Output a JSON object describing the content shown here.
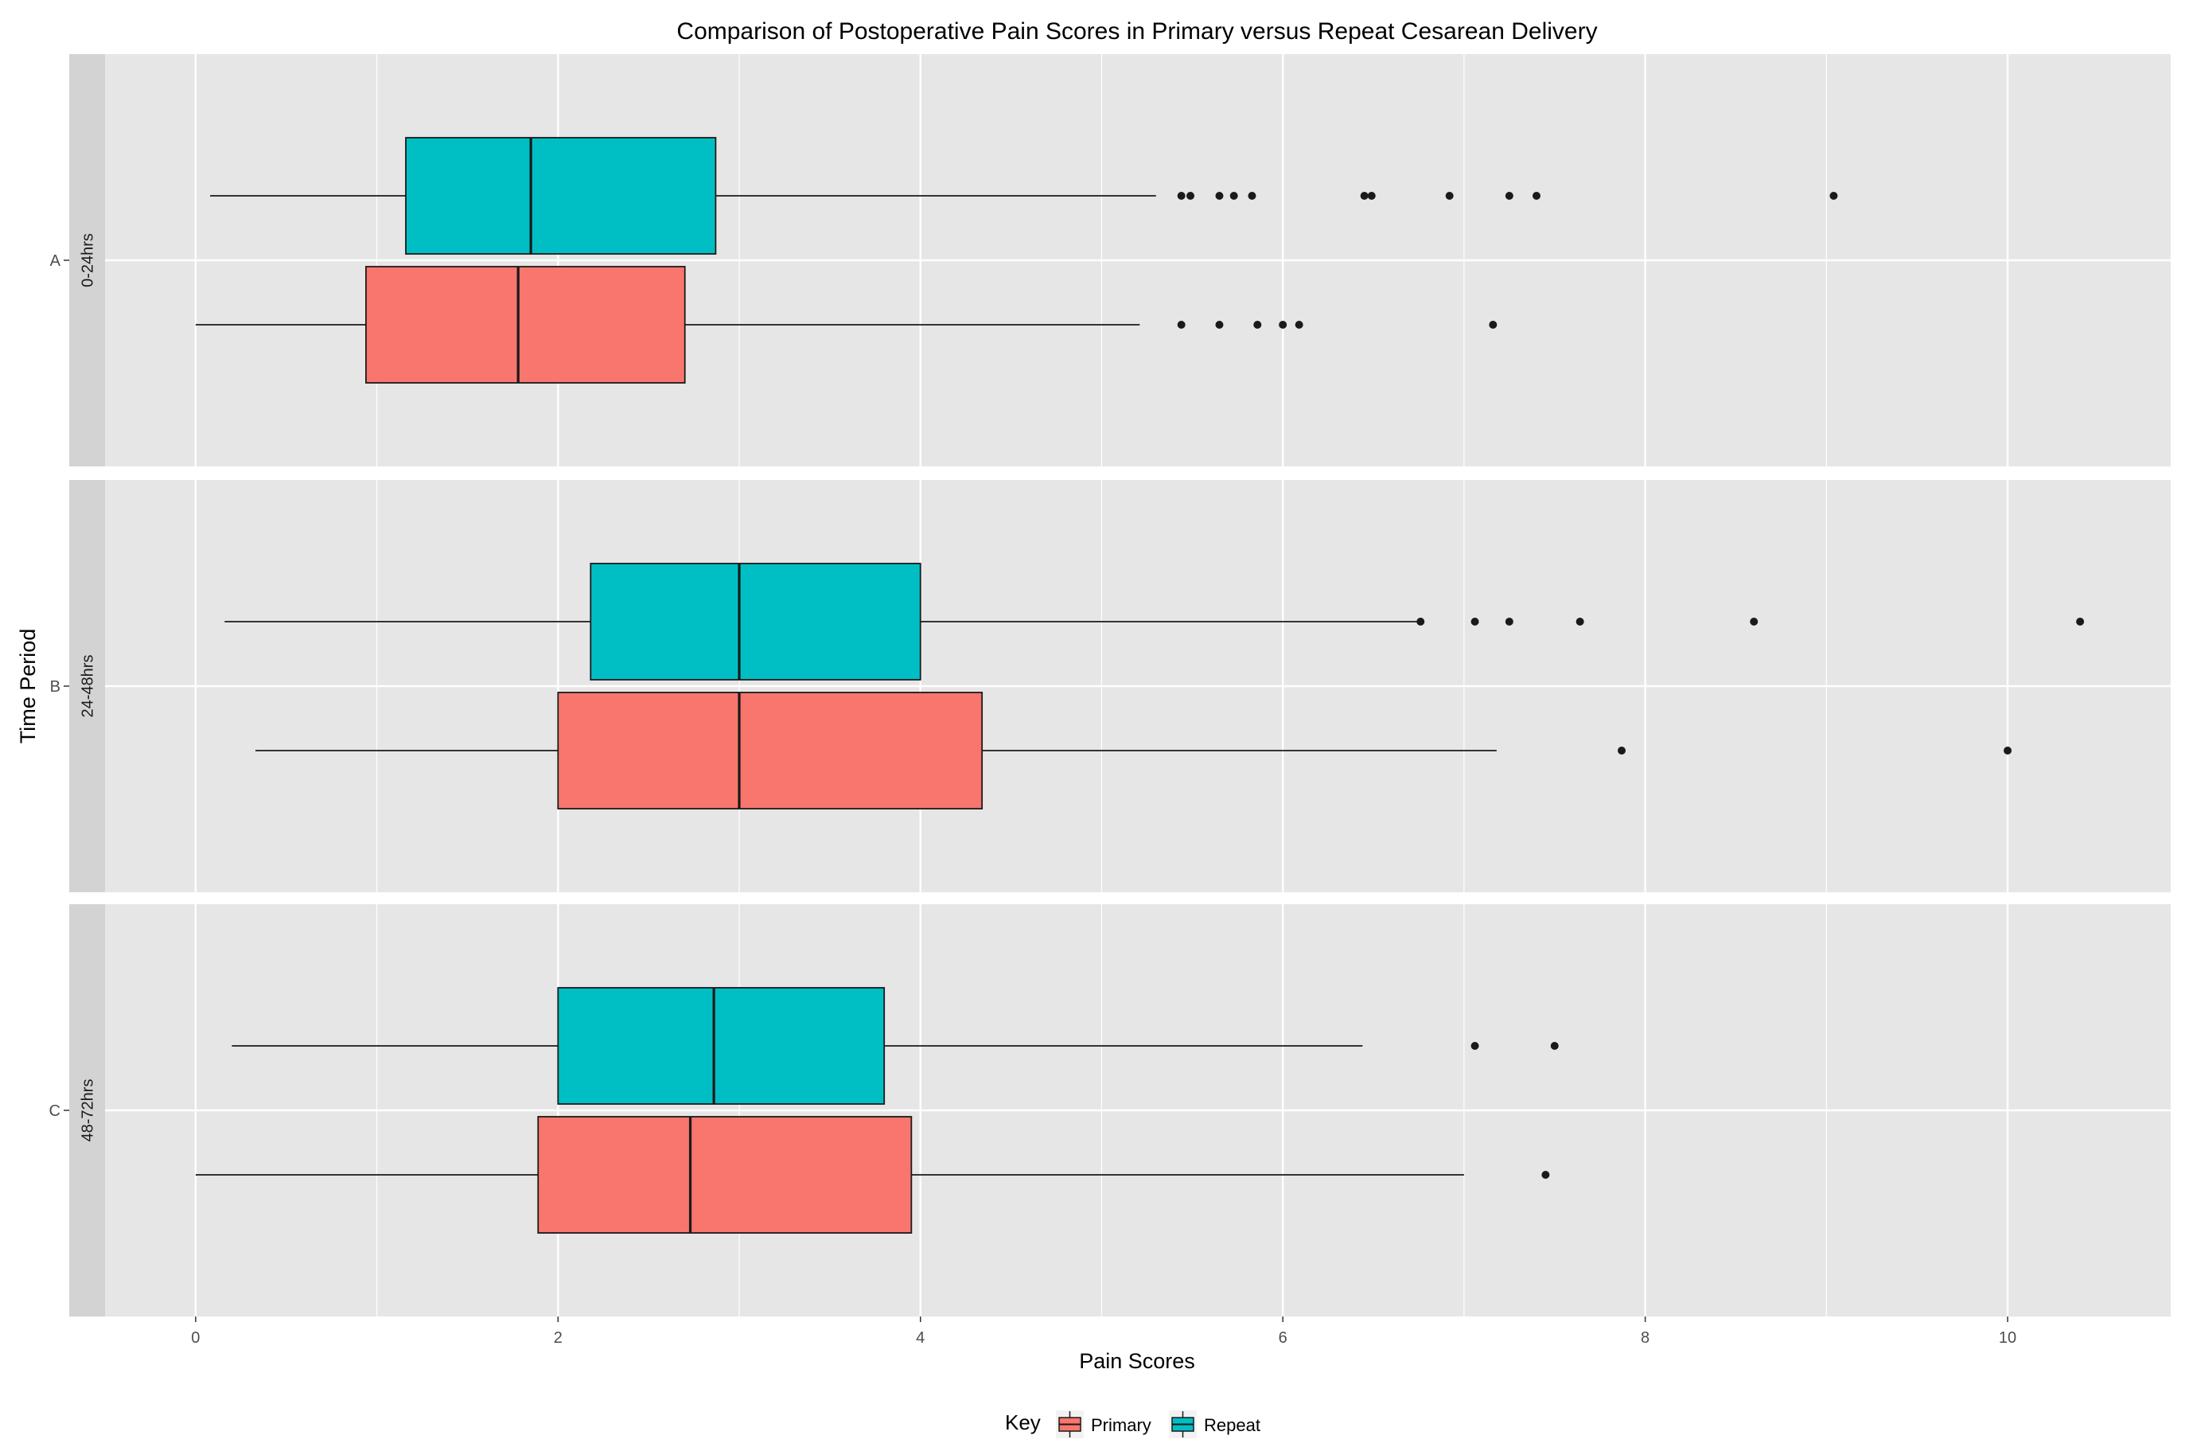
{
  "chart_data": {
    "type": "boxplot",
    "orientation": "horizontal",
    "title": "Comparison of Postoperative Pain Scores in Primary versus Repeat Cesarean Delivery",
    "xlabel": "Pain Scores",
    "ylabel": "Time Period",
    "xlim": [
      -0.5,
      10.9
    ],
    "x_ticks": [
      0,
      2,
      4,
      6,
      8,
      10
    ],
    "grid": true,
    "legend": {
      "title": "Key",
      "position": "bottom",
      "entries": [
        {
          "name": "Primary",
          "color": "#F8766D"
        },
        {
          "name": "Repeat",
          "color": "#00BFC4"
        }
      ]
    },
    "panels": [
      {
        "tick_label": "A",
        "strip_label": "0-24hrs",
        "series": [
          {
            "name": "Repeat",
            "color": "#00BFC4",
            "whisker_low": 0.08,
            "q1": 1.16,
            "median": 1.85,
            "q3": 2.87,
            "whisker_high": 5.3,
            "outliers": [
              5.44,
              5.49,
              5.65,
              5.73,
              5.83,
              6.45,
              6.49,
              6.92,
              7.25,
              7.4,
              9.04
            ]
          },
          {
            "name": "Primary",
            "color": "#F8766D",
            "whisker_low": 0.0,
            "q1": 0.94,
            "median": 1.78,
            "q3": 2.7,
            "whisker_high": 5.21,
            "outliers": [
              5.44,
              5.65,
              5.86,
              6.0,
              6.09,
              7.16
            ]
          }
        ]
      },
      {
        "tick_label": "B",
        "strip_label": "24-48hrs",
        "series": [
          {
            "name": "Repeat",
            "color": "#00BFC4",
            "whisker_low": 0.16,
            "q1": 2.18,
            "median": 3.0,
            "q3": 4.0,
            "whisker_high": 6.75,
            "outliers": [
              6.76,
              7.06,
              7.25,
              7.64,
              8.6,
              10.4
            ]
          },
          {
            "name": "Primary",
            "color": "#F8766D",
            "whisker_low": 0.33,
            "q1": 2.0,
            "median": 3.0,
            "q3": 4.34,
            "whisker_high": 7.18,
            "outliers": [
              7.87,
              10.0
            ]
          }
        ]
      },
      {
        "tick_label": "C",
        "strip_label": "48-72hrs",
        "series": [
          {
            "name": "Repeat",
            "color": "#00BFC4",
            "whisker_low": 0.2,
            "q1": 2.0,
            "median": 2.86,
            "q3": 3.8,
            "whisker_high": 6.44,
            "outliers": [
              7.06,
              7.5
            ]
          },
          {
            "name": "Primary",
            "color": "#F8766D",
            "whisker_low": 0.0,
            "q1": 1.89,
            "median": 2.73,
            "q3": 3.95,
            "whisker_high": 7.0,
            "outliers": [
              7.45
            ]
          }
        ]
      }
    ]
  },
  "colors": {
    "panel_bg": "#E6E6E6",
    "strip_bg": "#D3D3D3",
    "grid": "#FFFFFF",
    "outline": "#1A1A1A"
  }
}
